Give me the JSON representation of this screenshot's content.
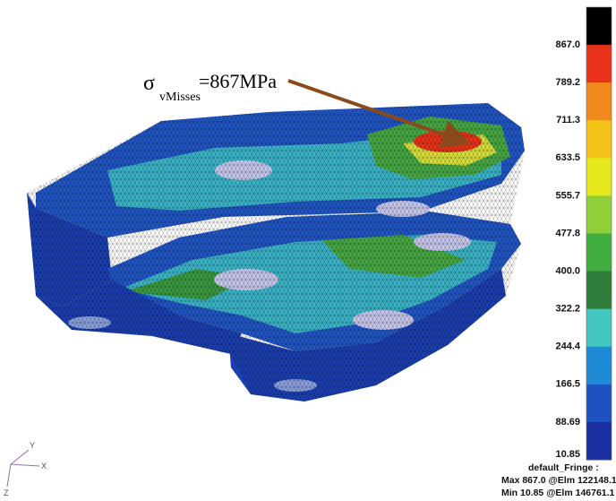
{
  "annotation": {
    "symbol": "σ",
    "subscript": "vMisses",
    "text": "=867MPa"
  },
  "legend": {
    "labels": [
      "867.0",
      "789.2",
      "711.3",
      "633.5",
      "555.7",
      "477.8",
      "400.0",
      "322.2",
      "244.4",
      "166.5",
      "88.69",
      "10.85"
    ],
    "colors": [
      "#000000",
      "#e8331a",
      "#f08a1c",
      "#f5c21a",
      "#e6e81e",
      "#8fcf3a",
      "#3fae3f",
      "#2f7d3a",
      "#43c6c0",
      "#1f8ad6",
      "#1e52c0",
      "#1a2fa0"
    ]
  },
  "footer": {
    "title": "default_Fringe :",
    "max": "Max 867.0 @Elm 122148.1",
    "min": "Min 10.85 @Elm 146761.1"
  },
  "triad": {
    "y": "Y",
    "x": "X",
    "z": "Z"
  }
}
